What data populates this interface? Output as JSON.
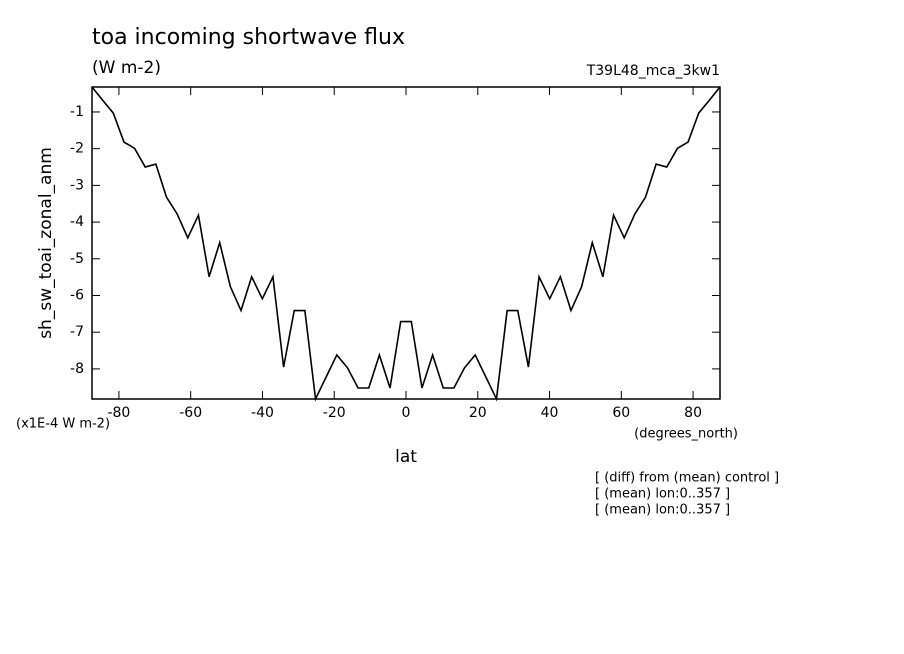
{
  "chart_data": {
    "type": "line",
    "title": "toa incoming shortwave flux",
    "subtitle": "(W m-2)",
    "run_label": "T39L48_mca_3kw1",
    "y_label": "sh_sw_toai_zonal_anm",
    "y_units": "(x1E-4 W m-2)",
    "x_label": "lat",
    "x_units": "(degrees_north)",
    "annotations": [
      "[ (diff) from (mean) control ]",
      "[ (mean) lon:0..357 ]",
      "[ (mean) lon:0..357 ]"
    ],
    "color": "#000000",
    "x": [
      -87.5,
      -84.53,
      -81.57,
      -78.6,
      -75.64,
      -72.67,
      -69.7,
      -66.74,
      -63.77,
      -60.81,
      -57.84,
      -54.87,
      -51.91,
      -48.94,
      -45.97,
      -43.01,
      -40.04,
      -37.08,
      -34.11,
      -31.14,
      -28.18,
      -25.21,
      -22.25,
      -19.28,
      -16.31,
      -13.35,
      -10.38,
      -7.42,
      -4.45,
      -1.48,
      1.48,
      4.45,
      7.42,
      10.38,
      13.35,
      16.31,
      19.28,
      22.25,
      25.21,
      28.18,
      31.14,
      34.11,
      37.08,
      40.04,
      43.01,
      45.97,
      48.94,
      51.91,
      54.87,
      57.84,
      60.81,
      63.77,
      66.74,
      69.7,
      72.67,
      75.64,
      78.6,
      81.57,
      84.53,
      87.5
    ],
    "values": [
      -0.32,
      -0.68,
      -1.03,
      -1.82,
      -1.99,
      -2.5,
      -2.42,
      -3.32,
      -3.78,
      -4.43,
      -3.81,
      -5.49,
      -4.56,
      -5.76,
      -6.41,
      -5.49,
      -6.09,
      -5.49,
      -7.95,
      -6.41,
      -6.41,
      -8.82,
      -8.22,
      -7.62,
      -7.97,
      -8.52,
      -8.52,
      -7.62,
      -8.52,
      -6.71,
      -6.71,
      -8.52,
      -7.62,
      -8.52,
      -8.52,
      -7.97,
      -7.62,
      -8.22,
      -8.82,
      -6.41,
      -6.41,
      -7.95,
      -5.49,
      -6.09,
      -5.49,
      -6.41,
      -5.76,
      -4.56,
      -5.49,
      -3.81,
      -4.43,
      -3.78,
      -3.32,
      -2.42,
      -2.5,
      -1.99,
      -1.82,
      -1.03,
      -0.68,
      -0.32
    ],
    "xlim": [
      -87.5,
      87.5
    ],
    "xticks": [
      -80,
      -60,
      -40,
      -20,
      0,
      20,
      40,
      60,
      80
    ],
    "ylim": [
      -8.82,
      -0.32
    ],
    "yticks": [
      -8,
      -7,
      -6,
      -5,
      -4,
      -3,
      -2,
      -1
    ],
    "grid": false
  }
}
